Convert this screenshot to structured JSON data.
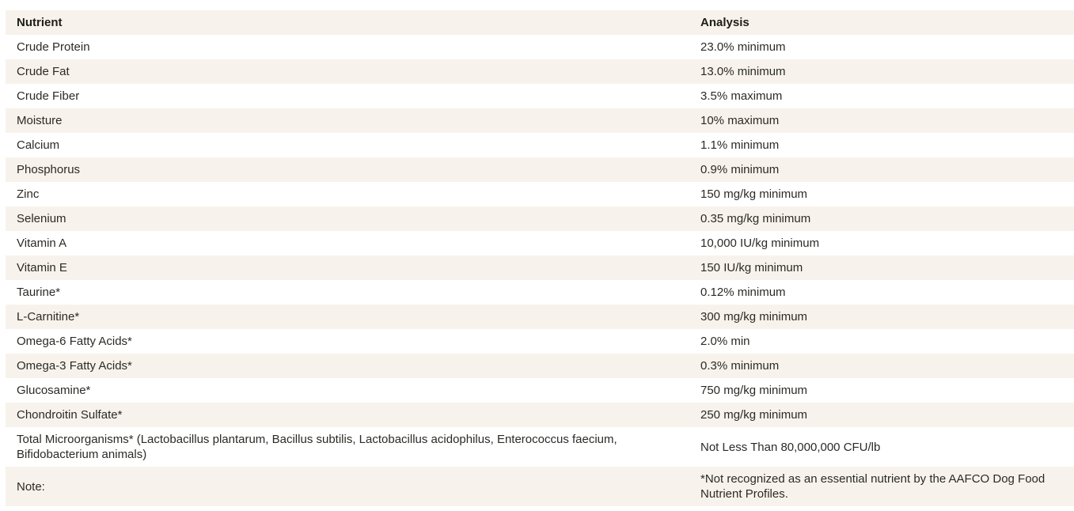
{
  "table": {
    "columns": [
      "Nutrient",
      "Analysis"
    ],
    "rows": [
      {
        "nutrient": "Crude Protein",
        "analysis": "23.0% minimum"
      },
      {
        "nutrient": "Crude Fat",
        "analysis": "13.0% minimum"
      },
      {
        "nutrient": "Crude Fiber",
        "analysis": "3.5% maximum"
      },
      {
        "nutrient": "Moisture",
        "analysis": "10% maximum"
      },
      {
        "nutrient": "Calcium",
        "analysis": "1.1% minimum"
      },
      {
        "nutrient": "Phosphorus",
        "analysis": "0.9% minimum"
      },
      {
        "nutrient": "Zinc",
        "analysis": "150 mg/kg minimum"
      },
      {
        "nutrient": "Selenium",
        "analysis": "0.35 mg/kg minimum"
      },
      {
        "nutrient": "Vitamin A",
        "analysis": "10,000 IU/kg minimum"
      },
      {
        "nutrient": "Vitamin E",
        "analysis": "150 IU/kg minimum"
      },
      {
        "nutrient": "Taurine*",
        "analysis": "0.12% minimum"
      },
      {
        "nutrient": "L-Carnitine*",
        "analysis": "300 mg/kg minimum"
      },
      {
        "nutrient": "Omega-6 Fatty Acids*",
        "analysis": "2.0% min"
      },
      {
        "nutrient": "Omega-3 Fatty Acids*",
        "analysis": "0.3% minimum"
      },
      {
        "nutrient": "Glucosamine*",
        "analysis": "750 mg/kg minimum"
      },
      {
        "nutrient": "Chondroitin Sulfate*",
        "analysis": "250 mg/kg minimum"
      },
      {
        "nutrient": "Total Microorganisms* (Lactobacillus plantarum, Bacillus subtilis, Lactobacillus acidophilus, Enterococcus faecium, Bifidobacterium animals)",
        "analysis": "Not Less Than 80,000,000 CFU/lb"
      },
      {
        "nutrient": "Note:",
        "analysis": "*Not recognized as an essential nutrient by the AAFCO Dog Food Nutrient Profiles."
      }
    ],
    "colors": {
      "stripe": "#f7f3ec",
      "text": "#2c2a26",
      "header_text": "#1f1d19"
    }
  }
}
